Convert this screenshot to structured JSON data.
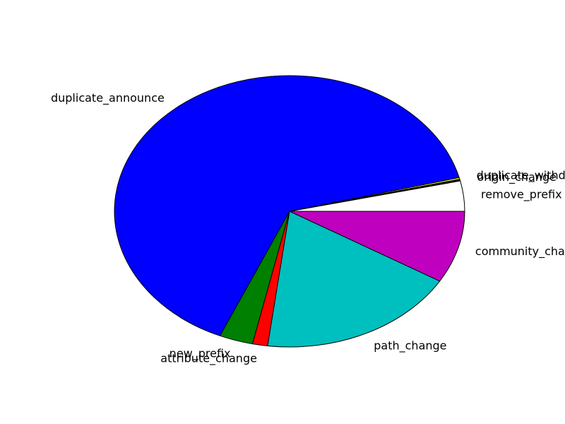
{
  "chart_data": {
    "type": "pie",
    "title": "",
    "start_angle_deg": 0,
    "direction": "counterclockwise",
    "slices": [
      {
        "label": "remove_prefix",
        "value": 3.6,
        "color": "#ffffff"
      },
      {
        "label": "origin_change",
        "value": 0.2,
        "color": "#000000"
      },
      {
        "label": "duplicate_withdraw",
        "value": 0.2,
        "color": "#ffff00"
      },
      {
        "label": "duplicate_announce",
        "value": 64.5,
        "color": "#0000ff"
      },
      {
        "label": "new_prefix",
        "value": 3.1,
        "color": "#008000"
      },
      {
        "label": "attribute_change",
        "value": 1.4,
        "color": "#ff0000"
      },
      {
        "label": "path_change",
        "value": 18.4,
        "color": "#00bfbf"
      },
      {
        "label": "community_change",
        "value": 8.6,
        "color": "#bf00bf"
      }
    ]
  }
}
